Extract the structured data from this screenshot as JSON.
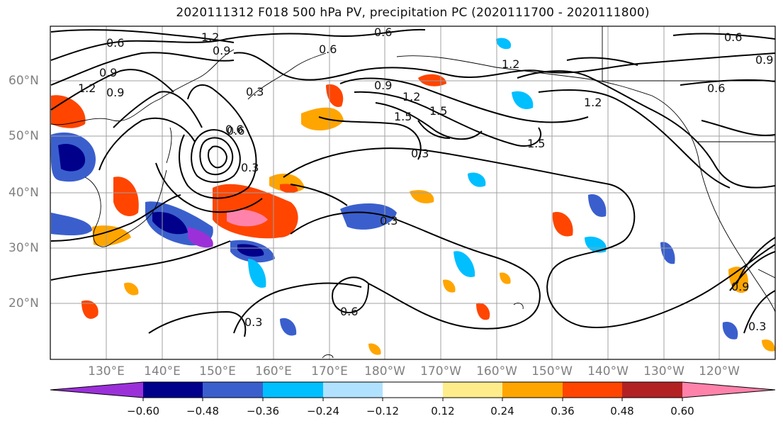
{
  "title": "2020111312 F018 500 hPa PV, precipitation PC (2020111700 - 2020111800)",
  "lat_labels": [
    "60°N",
    "50°N",
    "40°N",
    "30°N",
    "20°N"
  ],
  "lon_labels": [
    "130°E",
    "140°E",
    "150°E",
    "160°E",
    "170°E",
    "180°W",
    "170°W",
    "160°W",
    "150°W",
    "140°W",
    "130°W",
    "120°W"
  ],
  "colorbar": {
    "ticks": [
      "−0.60",
      "−0.48",
      "−0.36",
      "−0.24",
      "−0.12",
      "0.12",
      "0.24",
      "0.36",
      "0.48",
      "0.60"
    ],
    "colors": [
      "#9b30d9",
      "#00008b",
      "#3a5fcd",
      "#00bfff",
      "#b0e2ff",
      "#ffffff",
      "#ffec8b",
      "#ffa500",
      "#ff4500",
      "#b22222",
      "#ff82ab"
    ]
  },
  "contour_labels": [
    "0.6",
    "1.2",
    "0.9",
    "0.6",
    "0.6",
    "0.9",
    "1.2",
    "0.6",
    "0.9",
    "0.3",
    "0.6",
    "0.9",
    "1.2",
    "1.5",
    "0.3",
    "1.5",
    "1.2",
    "1.5",
    "0.6",
    "0.3",
    "0.3",
    "0.6",
    "0.3",
    "0.9",
    "0.3",
    "1.2",
    "0.6",
    "0.9"
  ],
  "colors": {
    "contour": "#000000",
    "grid": "#a0a0a0",
    "axis_label": "#808080"
  }
}
